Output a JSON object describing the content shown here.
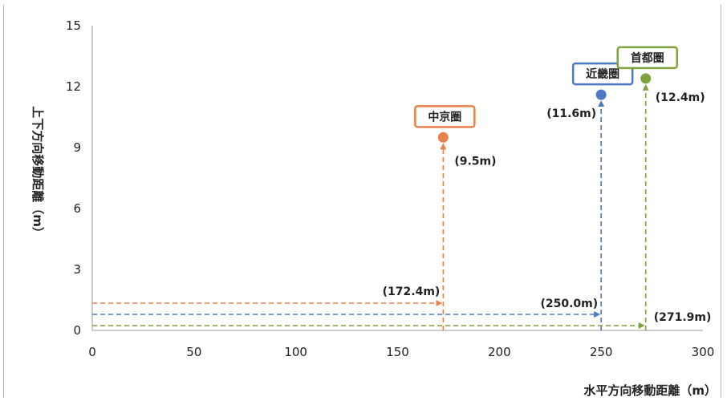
{
  "chart_data": {
    "type": "scatter",
    "xlabel": "水平方向移動距離（m）",
    "ylabel": "上下方向移動距離（m）",
    "xlim": [
      0,
      300
    ],
    "ylim": [
      0,
      15
    ],
    "xticks": [
      0,
      50,
      100,
      150,
      200,
      250,
      300
    ],
    "yticks": [
      0,
      3,
      6,
      9,
      12,
      15
    ],
    "grid": false,
    "series": [
      {
        "name": "中京圏",
        "x": 172.4,
        "y": 9.5,
        "color": "#e8824a",
        "x_label": "(172.4m)",
        "y_label": "(9.5m)"
      },
      {
        "name": "近畿圏",
        "x": 250.0,
        "y": 11.6,
        "color": "#4a78c2",
        "x_label": "(250.0m)",
        "y_label": "(11.6m)"
      },
      {
        "name": "首都圏",
        "x": 271.9,
        "y": 12.4,
        "color": "#7ea23f",
        "x_label": "(271.9m)",
        "y_label": "(12.4m)"
      }
    ]
  }
}
